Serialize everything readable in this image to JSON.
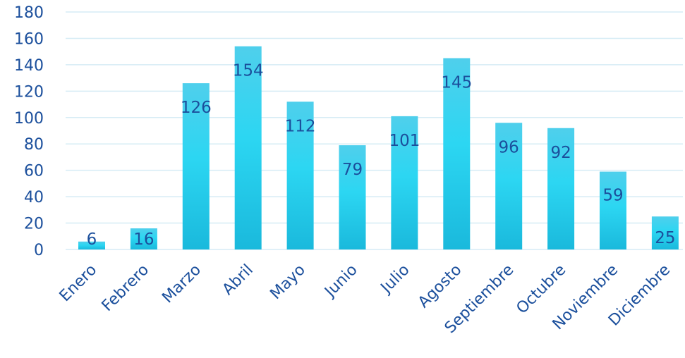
{
  "chart_data": {
    "type": "bar",
    "categories": [
      "Enero",
      "Febrero",
      "Marzo",
      "Abril",
      "Mayo",
      "Junio",
      "Julio",
      "Agosto",
      "Septiembre",
      "Octubre",
      "Noviembre",
      "Diciembre"
    ],
    "values": [
      6,
      16,
      126,
      154,
      112,
      79,
      101,
      145,
      96,
      92,
      59,
      25
    ],
    "ylim": [
      0,
      180
    ],
    "yticks": [
      0,
      20,
      40,
      60,
      80,
      100,
      120,
      140,
      160,
      180
    ],
    "grid": true,
    "data_labels": true,
    "colors": {
      "bar_top": "#4fcfec",
      "bar_mid": "#2cd6f2",
      "bar_bottom": "#1ab9dc",
      "text": "#1b4f9c",
      "grid": "#d6ecf5"
    }
  }
}
